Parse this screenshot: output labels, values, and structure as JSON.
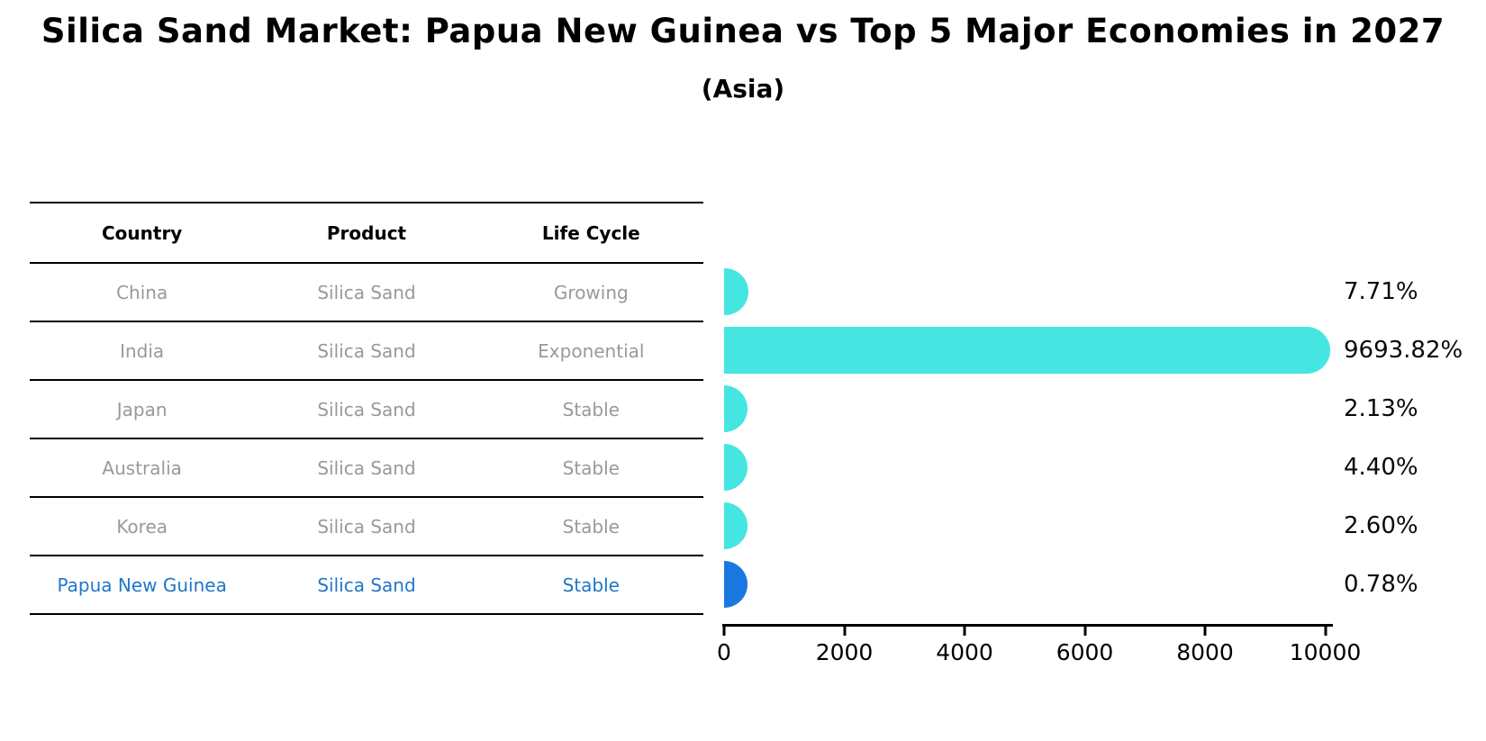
{
  "title": "Silica Sand Market: Papua New Guinea vs Top 5 Major Economies in 2027",
  "subtitle": "(Asia)",
  "table": {
    "headers": [
      "Country",
      "Product",
      "Life Cycle"
    ],
    "rows": [
      {
        "country": "China",
        "product": "Silica Sand",
        "life_cycle": "Growing",
        "highlight": false
      },
      {
        "country": "India",
        "product": "Silica Sand",
        "life_cycle": "Exponential",
        "highlight": false
      },
      {
        "country": "Japan",
        "product": "Silica Sand",
        "life_cycle": "Stable",
        "highlight": false
      },
      {
        "country": "Australia",
        "product": "Silica Sand",
        "life_cycle": "Stable",
        "highlight": false
      },
      {
        "country": "Korea",
        "product": "Silica Sand",
        "life_cycle": "Stable",
        "highlight": false
      },
      {
        "country": "Papua New Guinea",
        "product": "Silica Sand",
        "life_cycle": "Stable",
        "highlight": true
      }
    ]
  },
  "chart_data": {
    "type": "bar",
    "orientation": "horizontal",
    "categories": [
      "China",
      "India",
      "Japan",
      "Australia",
      "Korea",
      "Papua New Guinea"
    ],
    "values": [
      7.71,
      9693.82,
      2.13,
      4.4,
      2.6,
      0.78
    ],
    "labels": [
      "7.71%",
      "9693.82%",
      "2.13%",
      "4.40%",
      "2.60%",
      "0.78%"
    ],
    "xlim": [
      0,
      10000
    ],
    "xticks": [
      0,
      2000,
      4000,
      6000,
      8000,
      10000
    ],
    "grid": false,
    "legend": "none",
    "bar_color": "#45E6E1",
    "highlight_color": "#1978E0",
    "highlight_index": 5
  },
  "colors": {
    "bar_cyan": "#45E6E1",
    "bar_blue": "#1978E0",
    "highlight_text": "#2077C8",
    "table_text": "#999999",
    "axis": "#000000"
  }
}
